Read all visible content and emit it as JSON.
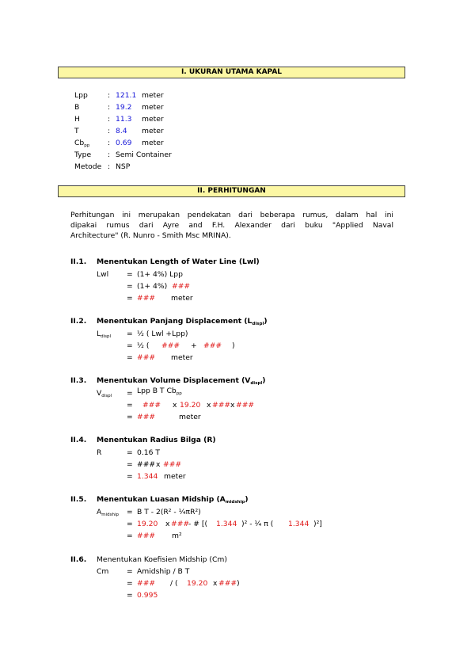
{
  "sections": {
    "s1_title": "I. UKURAN UTAMA KAPAL",
    "s2_title": "II. PERHITUNGAN"
  },
  "dims": [
    {
      "label": "Lpp",
      "value": "121.1",
      "unit": "meter"
    },
    {
      "label": "B",
      "value": "19.2",
      "unit": "meter"
    },
    {
      "label": "H",
      "value": "11.3",
      "unit": "meter"
    },
    {
      "label": "T",
      "value": "8.4",
      "unit": "meter"
    },
    {
      "label": "Cb",
      "label_sub": "pp",
      "value": "0.69",
      "unit": "meter"
    },
    {
      "label": "Type",
      "value": "Semi Container",
      "unit": ""
    },
    {
      "label": "Metode",
      "value": "NSP",
      "unit": ""
    }
  ],
  "colon": ":",
  "eq": "=",
  "intro": [
    "Perhitungan ini merupakan pendekatan dari beberapa rumus, dalam hal ini",
    "dipakai rumus dari Ayre and F.H. Alexander dari buku \"Applied Naval",
    "Architecture\" (R. Nunro - Smith Msc MRINA)."
  ],
  "h1": {
    "num": "II.1.",
    "title": "Menentukan Length of Water Line (Lwl)",
    "var": "Lwl",
    "l1": "(1+ 4%) Lpp",
    "l2a": "(1+ 4%)",
    "l2b": "###",
    "l3a": "###",
    "l3b": "meter"
  },
  "h2": {
    "num": "II.2.",
    "title": "Menentukan Panjang Displacement (L",
    "title_sub": "displ",
    "title_end": ")",
    "var": "L",
    "var_sub": "displ",
    "l1": "½  (  Lwl +Lpp)",
    "l2a": "½  (",
    "l2b": "###",
    "l2c": "+",
    "l2d": "###",
    "l2e": ")",
    "l3a": "###",
    "l3b": "meter"
  },
  "h3": {
    "num": "II.3.",
    "title": "Menentukan Volume Displacement (V",
    "title_sub": "displ",
    "title_end": ")",
    "var": "V",
    "var_sub": "displ",
    "l1": "Lpp B T Cb",
    "l1_sub": "pp",
    "l2a": "###",
    "l2b": "x",
    "l2c": "19.20",
    "l2d": "x",
    "l2e": "###",
    "l2f": "x",
    "l2g": "###",
    "l3a": "###",
    "l3b": "meter"
  },
  "h4": {
    "num": "II.4.",
    "title": "Menentukan Radius Bilga (R)",
    "var": "R",
    "l1": "0.16 T",
    "l2a": "###",
    "l2b": "x",
    "l2c": "###",
    "l3a": "1.344",
    "l3b": "meter"
  },
  "h5": {
    "num": "II.5.",
    "title": "Menentukan Luasan Midship (A",
    "title_sub": "midship",
    "title_end": ")",
    "var": "A",
    "var_sub": "midship",
    "l1": "B T - 2(R² - ¼πR²)",
    "l2a": "19.20",
    "l2b": "x",
    "l2c": "###",
    "l2d": "- # [(",
    "l2e": "1.344",
    "l2f": ")²  -  ¼ π  (",
    "l2g": "1.344",
    "l2h": ")²]",
    "l3a": "###",
    "l3b": "m²"
  },
  "h6": {
    "num": "II.6.",
    "title": "Menentukan Koefisien Midship (Cm)",
    "var": "Cm",
    "l1": "Amidship / B T",
    "l2a": "###",
    "l2b": "/  (",
    "l2c": "19.20",
    "l2d": "x",
    "l2e": "###",
    "l2f": ")",
    "l3": "0.995"
  }
}
